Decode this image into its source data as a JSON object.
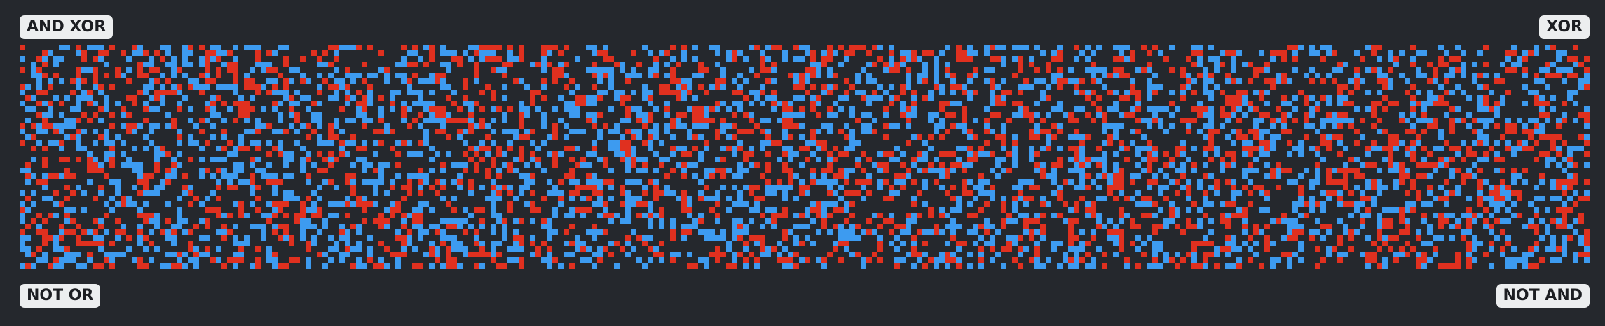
{
  "labels": {
    "top_left": "AND XOR",
    "top_right": "XOR",
    "bottom_left": "NOT OR",
    "bottom_right": "NOT AND"
  },
  "colors": {
    "background": "#25282d",
    "cell_blue": "#3d9bf0",
    "cell_red": "#e0301f",
    "label_bg": "#eceeef",
    "label_text": "#1c1e22"
  },
  "grid": {
    "columns": 280,
    "rows": 40,
    "density": 0.38,
    "blue_ratio": 0.55
  }
}
